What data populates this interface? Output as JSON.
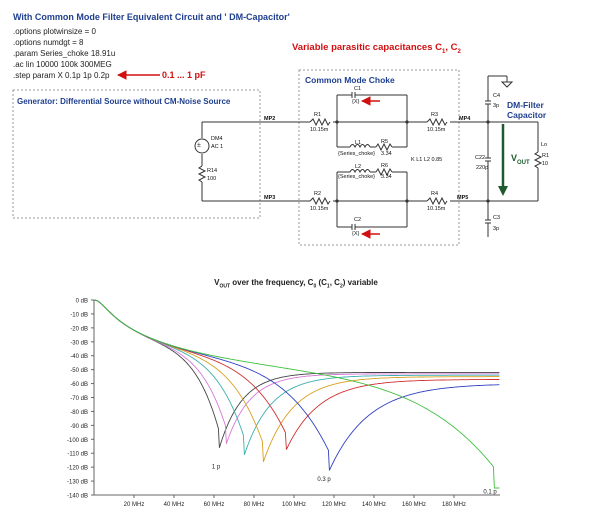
{
  "header": {
    "title": "With Common Mode Filter Equivalent Circuit and ' DM-Capacitor'",
    "spice_lines": [
      ".options plotwinsize = 0",
      ".options numdgt = 8",
      ".param Series_choke 18.91u",
      ".ac lin 10000 100k 300MEG",
      ".step param X 0.1p 1p 0.2p"
    ],
    "step_annotation": "0.1 ... 1 pF"
  },
  "schematic": {
    "variable_caps_label": "Variable parasitic capacitances C",
    "variable_caps_sub1": "1",
    "variable_caps_mid": ", C",
    "variable_caps_sub2": "2",
    "generator_label": "Generator: Differential Source without CM-Noise Source",
    "choke_label": "Common Mode Choke",
    "dm_filter_label_1": "DM-Filter",
    "dm_filter_label_2": "Capacitor",
    "vout_label": "V",
    "vout_sub": "OUT",
    "source": {
      "name": "DM4",
      "value": "AC 1"
    },
    "r14": {
      "name": "R14",
      "value": "100"
    },
    "nets": {
      "mp2": "MP2",
      "mp3": "MP3",
      "mp4": "MP4",
      "mp5": "MP5"
    },
    "r1": {
      "name": "R1",
      "value": "10.15m"
    },
    "r2": {
      "name": "R2",
      "value": "10.15m"
    },
    "r3": {
      "name": "R3",
      "value": "10.15m"
    },
    "r4": {
      "name": "R4",
      "value": "10.15m"
    },
    "r5": {
      "name": "R5",
      "value": "3.34"
    },
    "r6": {
      "name": "R6",
      "value": "3.34"
    },
    "l1": {
      "name": "L1",
      "value": "{Series_choke}"
    },
    "l2": {
      "name": "L2",
      "value": "{Series_choke}"
    },
    "coupling": "K L1 L2 0.85",
    "c1": {
      "name": "C1",
      "value": "{X}"
    },
    "c2": {
      "name": "C2",
      "value": "{X}"
    },
    "c3": {
      "name": "C3",
      "value": "3p"
    },
    "c4": {
      "name": "C4",
      "value": "3p"
    },
    "c22": {
      "name": "C22",
      "value": "220p"
    },
    "r_load": {
      "name": "R1",
      "value": "10"
    },
    "load_tag": "Lo"
  },
  "colors": {
    "accent_blue": "#1f3f8f",
    "accent_red": "#d01010",
    "vout_arrow": "#1e5a2c",
    "wire": "#333333"
  },
  "chart_data": {
    "type": "line",
    "title_prefix": "V",
    "title_sub": "OUT",
    "title_rest": " over the frequency, C",
    "title_sub0": "0",
    "title_tail": " (C",
    "title_sub1": "1",
    "title_comma": ", C",
    "title_sub2": "2",
    "title_end": ") variable",
    "x_scale": "linear",
    "xlim": [
      0,
      203
    ],
    "ylim": [
      -140,
      0
    ],
    "x_tick_labels": [
      "20 MHz",
      "40 MHz",
      "60 MHz",
      "80 MHz",
      "100 MHz",
      "120 MHz",
      "140 MHz",
      "160 MHz",
      "180 MHz"
    ],
    "x_tick_values": [
      20,
      40,
      60,
      80,
      100,
      120,
      140,
      160,
      180
    ],
    "y_tick_labels": [
      "0 dB",
      "-10 dB",
      "-20 dB",
      "-30 dB",
      "-40 dB",
      "-50 dB",
      "-60 dB",
      "-70 dB",
      "-80 dB",
      "-90 dB",
      "-100 dB",
      "-110 dB",
      "-120 dB",
      "-130 dB",
      "-140 dB"
    ],
    "y_tick_values": [
      0,
      -10,
      -20,
      -30,
      -40,
      -50,
      -60,
      -70,
      -80,
      -90,
      -100,
      -110,
      -120,
      -130,
      -140
    ],
    "grid": false,
    "legend": "none",
    "annotations": [
      {
        "text": "1 p",
        "x": 61,
        "y": -118
      },
      {
        "text": "0.3 p",
        "x": 115,
        "y": -127
      },
      {
        "text": "0.1 p",
        "x": 198,
        "y": -136
      }
    ],
    "series": [
      {
        "color": "#444444",
        "notch_mhz": 62.5,
        "notch_db": -107,
        "end_db": -52
      },
      {
        "color": "#d87ad8",
        "notch_mhz": 66,
        "notch_db": -104,
        "end_db": -53
      },
      {
        "color": "#3cb0b0",
        "notch_mhz": 75,
        "notch_db": -112,
        "end_db": -54
      },
      {
        "color": "#d9a020",
        "notch_mhz": 84.5,
        "notch_db": -117,
        "end_db": -55
      },
      {
        "color": "#d03030",
        "notch_mhz": 96,
        "notch_db": -108,
        "end_db": -57
      },
      {
        "color": "#3040c0",
        "notch_mhz": 117.5,
        "notch_db": -123,
        "end_db": -60
      },
      {
        "color": "#40c040",
        "notch_mhz": 200,
        "notch_db": -135,
        "end_db": -135
      }
    ]
  }
}
